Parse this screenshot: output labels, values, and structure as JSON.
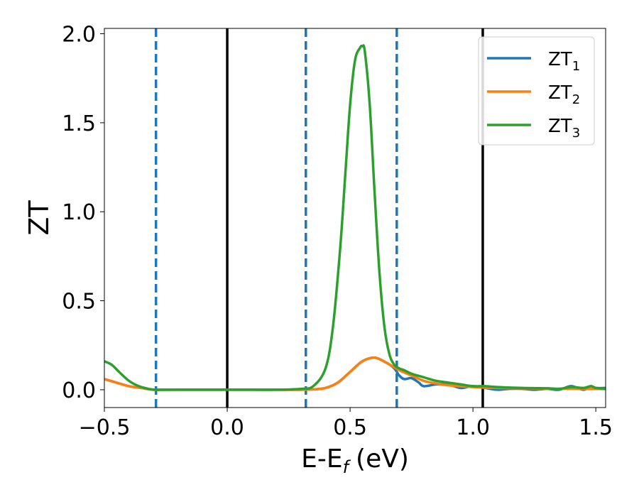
{
  "chart_data": {
    "type": "line",
    "xlabel": "E-E",
    "xlabel_sub": "f",
    "xlabel_unit": "(eV)",
    "ylabel": "ZT",
    "xlim": [
      -0.5,
      1.54
    ],
    "ylim": [
      -0.1,
      2.03
    ],
    "xticks": [
      -0.5,
      0.0,
      0.5,
      1.0,
      1.5
    ],
    "xtick_labels": [
      "−0.5",
      "0.0",
      "0.5",
      "1.0",
      "1.5"
    ],
    "yticks": [
      0.0,
      0.5,
      1.0,
      1.5,
      2.0
    ],
    "ytick_labels": [
      "0.0",
      "0.5",
      "1.0",
      "1.5",
      "2.0"
    ],
    "grid": false,
    "legend_position": "top-right",
    "vlines_solid": [
      0.0,
      1.04
    ],
    "vlines_dashed": [
      -0.29,
      0.32,
      0.69
    ],
    "series": [
      {
        "name": "ZT",
        "sub": "1",
        "color": "#1f77b4",
        "x": [
          -0.5,
          -0.45,
          -0.4,
          -0.35,
          -0.3,
          -0.25,
          -0.1,
          0.0,
          0.1,
          0.2,
          0.3,
          0.35,
          0.4,
          0.45,
          0.5,
          0.55,
          0.6,
          0.65,
          0.68,
          0.7,
          0.72,
          0.75,
          0.78,
          0.8,
          0.85,
          0.9,
          0.95,
          1.0,
          1.05,
          1.1,
          1.15,
          1.2,
          1.25,
          1.3,
          1.35,
          1.4,
          1.45,
          1.48,
          1.5,
          1.54
        ],
        "y": [
          0.06,
          0.04,
          0.02,
          0.01,
          0.0,
          0.0,
          0.0,
          0.0,
          0.0,
          0.0,
          0.0,
          0.002,
          0.01,
          0.04,
          0.1,
          0.16,
          0.18,
          0.15,
          0.12,
          0.08,
          0.06,
          0.065,
          0.04,
          0.02,
          0.03,
          0.03,
          0.01,
          0.02,
          0.01,
          0.0,
          0.005,
          0.005,
          0.0,
          0.005,
          0.0,
          0.02,
          0.0,
          0.02,
          0.01,
          0.01
        ]
      },
      {
        "name": "ZT",
        "sub": "2",
        "color": "#ff7f0e",
        "x": [
          -0.5,
          -0.45,
          -0.4,
          -0.35,
          -0.3,
          -0.25,
          -0.1,
          0.0,
          0.1,
          0.2,
          0.3,
          0.35,
          0.4,
          0.45,
          0.5,
          0.55,
          0.6,
          0.65,
          0.7,
          0.75,
          0.8,
          0.85,
          0.9,
          1.0,
          1.1,
          1.2,
          1.3,
          1.4,
          1.54
        ],
        "y": [
          0.06,
          0.04,
          0.02,
          0.01,
          0.0,
          0.0,
          0.0,
          0.0,
          0.0,
          0.0,
          0.0,
          0.002,
          0.01,
          0.04,
          0.1,
          0.16,
          0.18,
          0.15,
          0.11,
          0.08,
          0.05,
          0.035,
          0.025,
          0.015,
          0.01,
          0.008,
          0.006,
          0.005,
          0.004
        ]
      },
      {
        "name": "ZT",
        "sub": "3",
        "color": "#2ca02c",
        "x": [
          -0.5,
          -0.47,
          -0.44,
          -0.4,
          -0.36,
          -0.32,
          -0.29,
          -0.2,
          -0.1,
          0.0,
          0.1,
          0.2,
          0.3,
          0.35,
          0.4,
          0.43,
          0.46,
          0.48,
          0.5,
          0.52,
          0.54,
          0.55,
          0.56,
          0.58,
          0.6,
          0.62,
          0.64,
          0.66,
          0.68,
          0.7,
          0.72,
          0.75,
          0.8,
          0.85,
          0.9,
          0.95,
          1.0,
          1.05,
          1.1,
          1.2,
          1.3,
          1.35,
          1.4,
          1.45,
          1.48,
          1.5,
          1.54
        ],
        "y": [
          0.16,
          0.14,
          0.1,
          0.05,
          0.02,
          0.005,
          0.0,
          0.0,
          0.0,
          0.0,
          0.0,
          0.0,
          0.005,
          0.02,
          0.12,
          0.35,
          0.8,
          1.2,
          1.6,
          1.85,
          1.92,
          1.93,
          1.9,
          1.6,
          1.1,
          0.65,
          0.35,
          0.2,
          0.14,
          0.12,
          0.11,
          0.09,
          0.07,
          0.05,
          0.04,
          0.03,
          0.02,
          0.02,
          0.015,
          0.01,
          0.008,
          0.005,
          0.015,
          0.01,
          0.02,
          0.01,
          0.005
        ]
      }
    ]
  }
}
